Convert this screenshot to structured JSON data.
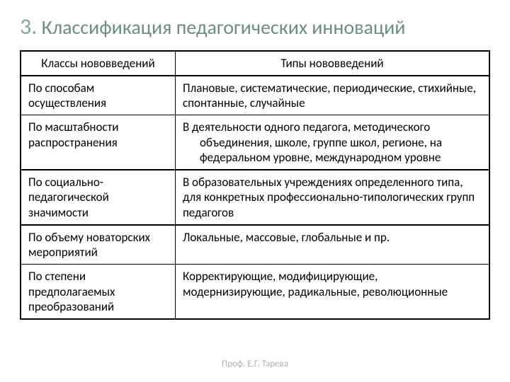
{
  "colors": {
    "title_num": "#7fa8a0",
    "title_text": "#6b8e87",
    "footer_text": "#b0b0b0",
    "body_text": "#000000",
    "border": "#000000",
    "background": "#ffffff"
  },
  "title": {
    "number": "3.",
    "text": "Классификация педагогических инноваций"
  },
  "table": {
    "columns": [
      "Классы нововведений",
      "Типы нововведений"
    ],
    "rows": [
      {
        "class": "По способам осуществления",
        "types": "Плановые, систематические, периодические, стихийные, спонтанные, случайные",
        "heavy_below": false
      },
      {
        "class": "По масштабности распространения",
        "types": "В деятельности одного педагога, методического объединения, школе, группе школ, регионе, на федеральном уровне, международном уровне",
        "heavy_below": true
      },
      {
        "class": "По социально-педагогической значимости",
        "types": "В образовательных учреждениях определенного типа, для конкретных профессионально-типологических групп педагогов",
        "heavy_below": true
      },
      {
        "class": "По объему новаторских мероприятий",
        "types": "Локальные, массовые, глобальные и пр.",
        "heavy_below": false
      },
      {
        "class": "По степени предполагаемых преобразований",
        "types": "Корректирующие, модифицирующие, модернизирующие, радикальные, революционные",
        "heavy_below": false
      }
    ]
  },
  "footer": "Проф. Е.Г. Тарева"
}
